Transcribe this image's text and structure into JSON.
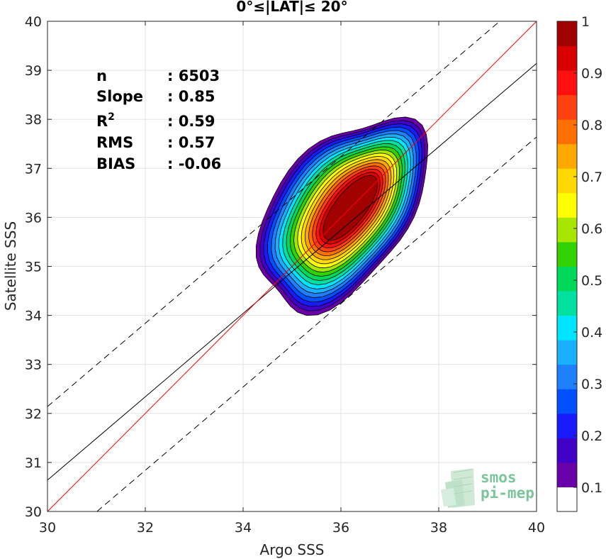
{
  "chart_data": {
    "type": "contour",
    "title": "0°≤|LAT|≤ 20°",
    "xlabel": "Argo SSS",
    "ylabel": "Satellite SSS",
    "xlim": [
      30,
      40
    ],
    "ylim": [
      30,
      40
    ],
    "xticks": [
      "30",
      "32",
      "34",
      "36",
      "38",
      "40"
    ],
    "yticks": [
      "30",
      "31",
      "32",
      "33",
      "34",
      "35",
      "36",
      "37",
      "38",
      "39",
      "40"
    ],
    "grid": true,
    "stats": [
      {
        "label": "n",
        "value": ": 6503"
      },
      {
        "label": "Slope",
        "value": ": 0.85"
      },
      {
        "label": "R",
        "sup": "2",
        "value": ": 0.59"
      },
      {
        "label": "RMS",
        "value": ": 0.57"
      },
      {
        "label": "BIAS",
        "value": ": -0.06"
      }
    ],
    "density_peak": {
      "x": 36.2,
      "y": 36.2
    },
    "lines": {
      "one_to_one": {
        "slope": 1.0,
        "intercept": 0.0,
        "color": "#ff0000"
      },
      "regression": {
        "slope": 0.85,
        "intercept": 5.14,
        "color": "#000000"
      },
      "upper_bound": {
        "slope": 0.85,
        "intercept": 6.64,
        "color": "#000000",
        "style": "dashed"
      },
      "lower_bound": {
        "slope": 0.85,
        "intercept": 3.64,
        "color": "#000000",
        "style": "dashed"
      }
    },
    "colorbar": {
      "range": [
        0,
        1
      ],
      "tick_labels": [
        "0.1",
        "0.2",
        "0.3",
        "0.4",
        "0.5",
        "0.6",
        "0.7",
        "0.8",
        "0.9",
        "1"
      ],
      "colors": [
        "#ffffff",
        "#6a00a8",
        "#3f00c8",
        "#1a1aff",
        "#0050ff",
        "#1e7fff",
        "#19b0ff",
        "#00e5ff",
        "#00e0a0",
        "#00d85a",
        "#32d200",
        "#a6e600",
        "#ffff00",
        "#ffd800",
        "#ffa800",
        "#ff7000",
        "#ff4010",
        "#ff1010",
        "#d80000",
        "#a00000"
      ]
    }
  },
  "logo": {
    "line1": "smos",
    "line2": "pi-mep"
  }
}
